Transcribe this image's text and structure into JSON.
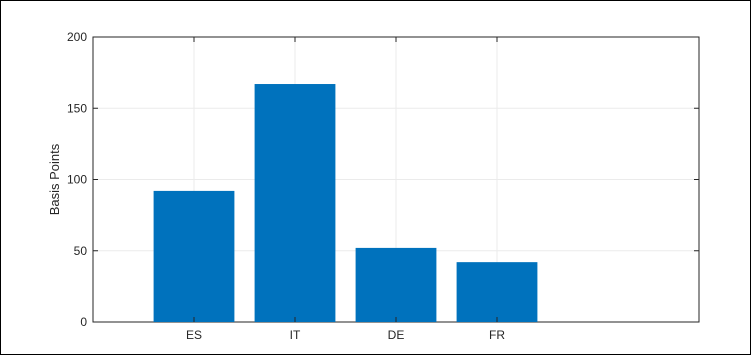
{
  "chart_data": {
    "type": "bar",
    "title": "",
    "xlabel": "",
    "ylabel": "Basis Points",
    "categories": [
      "ES",
      "IT",
      "DE",
      "FR"
    ],
    "values": [
      92,
      167,
      52,
      42
    ],
    "ylim": [
      0,
      200
    ],
    "yticks": [
      "0",
      "50",
      "100",
      "150",
      "200"
    ],
    "grid": true,
    "bar_color": "#0072BD",
    "grid_color": "#ebebeb",
    "axis_color": "#262626"
  }
}
